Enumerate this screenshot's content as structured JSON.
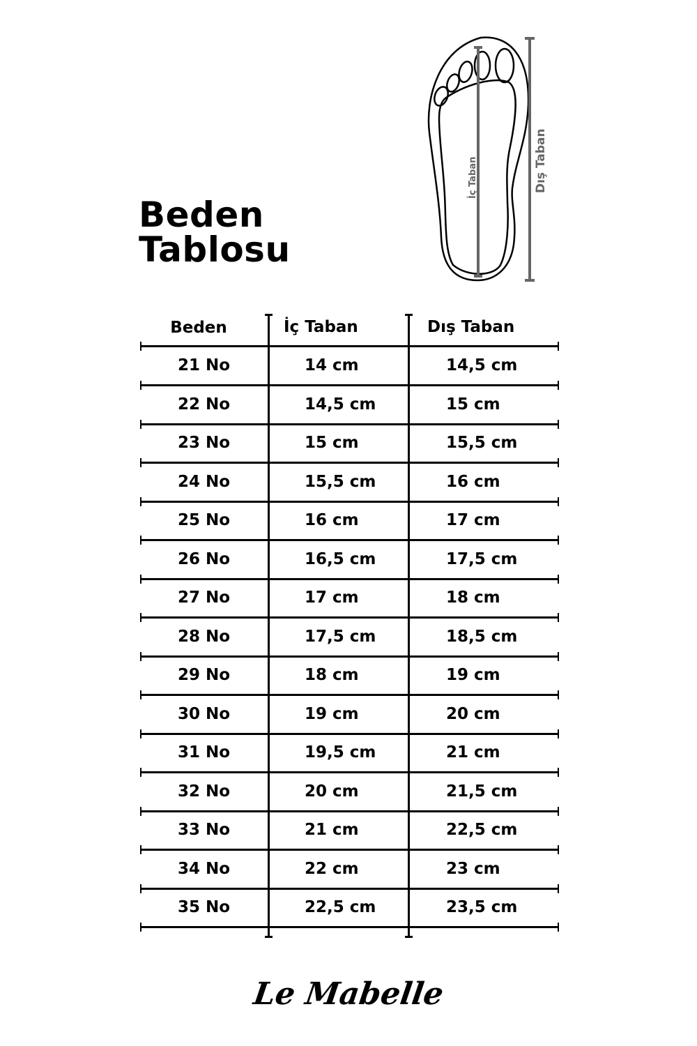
{
  "title": {
    "line1": "Beden",
    "line2": "Tablosu"
  },
  "diagram": {
    "inner_label": "İç Taban",
    "outer_label": "Dış Taban",
    "icon": "foot-sole-measurement-icon",
    "measure_color": "#666666"
  },
  "table": {
    "headers": [
      "Beden",
      "İç Taban",
      "Dış Taban"
    ],
    "rows": [
      [
        "21 No",
        "14 cm",
        "14,5 cm"
      ],
      [
        "22 No",
        "14,5 cm",
        "15 cm"
      ],
      [
        "23 No",
        "15 cm",
        "15,5 cm"
      ],
      [
        "24 No",
        "15,5 cm",
        "16 cm"
      ],
      [
        "25 No",
        "16 cm",
        "17 cm"
      ],
      [
        "26 No",
        "16,5 cm",
        "17,5 cm"
      ],
      [
        "27 No",
        "17 cm",
        "18 cm"
      ],
      [
        "28 No",
        "17,5 cm",
        "18,5 cm"
      ],
      [
        "29 No",
        "18 cm",
        "19 cm"
      ],
      [
        "30 No",
        "19 cm",
        "20 cm"
      ],
      [
        "31 No",
        "19,5 cm",
        "21 cm"
      ],
      [
        "32 No",
        "20 cm",
        "21,5 cm"
      ],
      [
        "33 No",
        "21 cm",
        "22,5 cm"
      ],
      [
        "34 No",
        "22 cm",
        "23 cm"
      ],
      [
        "35 No",
        "22,5 cm",
        "23,5 cm"
      ]
    ]
  },
  "brand": {
    "logo": "Le Mabelle"
  }
}
